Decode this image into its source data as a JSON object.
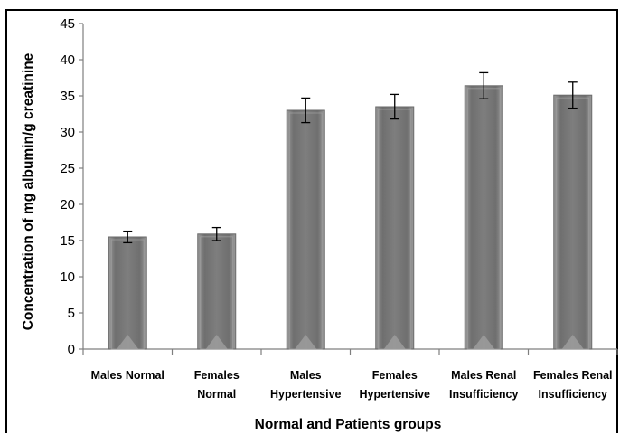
{
  "chart_data": {
    "type": "bar",
    "title": "",
    "xlabel": "Normal and Patients groups",
    "ylabel": "Concentration of mg albumin/g creatinine",
    "categories": [
      [
        "Males Normal"
      ],
      [
        "Females",
        "Normal"
      ],
      [
        "Males",
        "Hypertensive"
      ],
      [
        "Females",
        "Hypertensive"
      ],
      [
        "Males Renal",
        "Insufficiency"
      ],
      [
        "Females Renal",
        "Insufficiency"
      ]
    ],
    "values": [
      15.5,
      15.9,
      33.0,
      33.5,
      36.4,
      35.1
    ],
    "errors": [
      0.8,
      0.9,
      1.7,
      1.7,
      1.8,
      1.8
    ],
    "ylim": [
      0,
      45
    ],
    "yticks": [
      0,
      5,
      10,
      15,
      20,
      25,
      30,
      35,
      40,
      45
    ],
    "grid": false,
    "legend": "none",
    "bar_color": "#7f7f7f"
  }
}
